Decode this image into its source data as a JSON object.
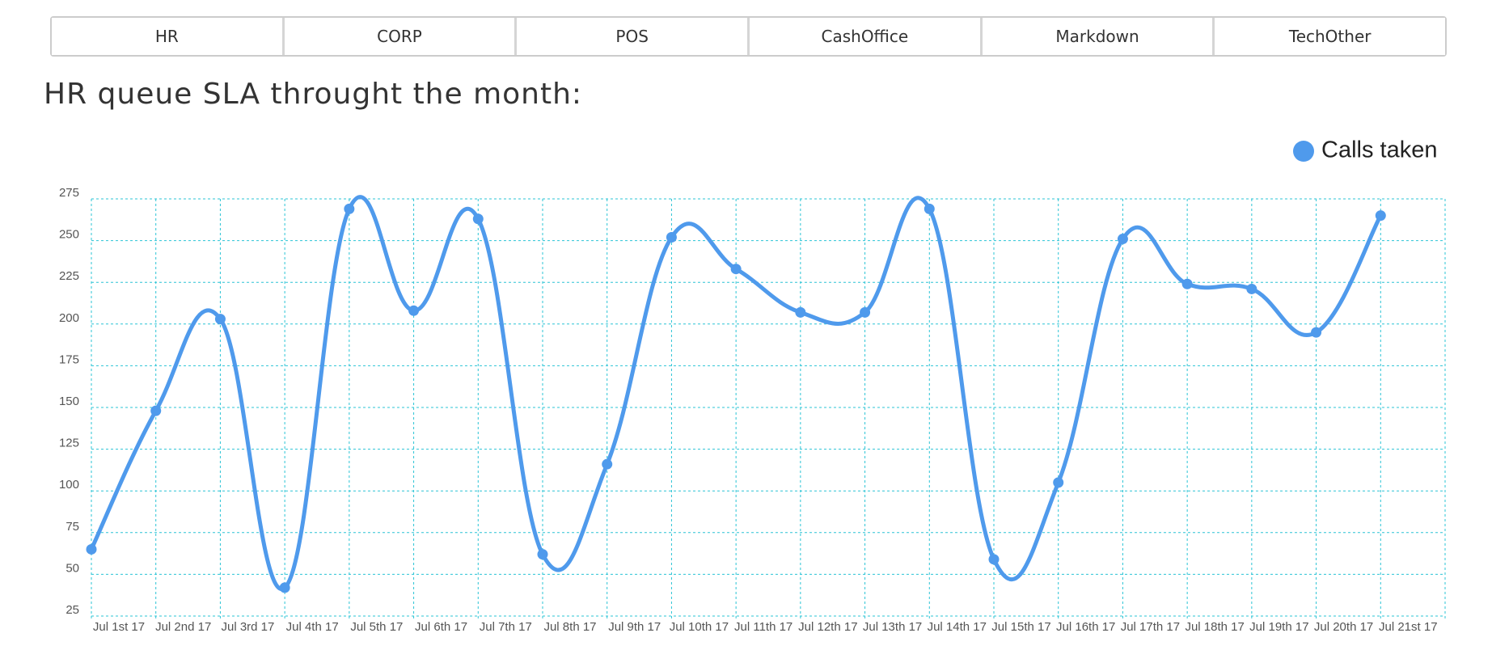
{
  "tabs": [
    "HR",
    "CORP",
    "POS",
    "CashOffice",
    "Markdown",
    "TechOther"
  ],
  "chart_data": {
    "type": "line",
    "title": "HR queue SLA throught the month:",
    "categories": [
      "Jul 1st 17",
      "Jul 2nd 17",
      "Jul 3rd 17",
      "Jul 4th 17",
      "Jul 5th 17",
      "Jul 6th 17",
      "Jul 7th 17",
      "Jul 8th 17",
      "Jul 9th 17",
      "Jul 10th 17",
      "Jul 11th 17",
      "Jul 12th 17",
      "Jul 13th 17",
      "Jul 14th 17",
      "Jul 15th 17",
      "Jul 16th 17",
      "Jul 17th 17",
      "Jul 18th 17",
      "Jul 19th 17",
      "Jul 20th 17",
      "Jul 21st 17"
    ],
    "series": [
      {
        "name": "Calls taken",
        "color": "#4f9aec",
        "values": [
          65,
          148,
          203,
          42,
          269,
          208,
          263,
          62,
          116,
          252,
          233,
          207,
          207,
          269,
          59,
          105,
          251,
          224,
          221,
          195,
          265
        ]
      }
    ],
    "ylim": [
      25,
      275
    ],
    "yticks": [
      25,
      50,
      75,
      100,
      125,
      150,
      175,
      200,
      225,
      250,
      275
    ],
    "grid": true,
    "grid_color": "#2bc4d6",
    "legend": "top-right"
  }
}
